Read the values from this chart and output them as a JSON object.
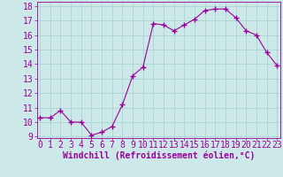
{
  "x": [
    0,
    1,
    2,
    3,
    4,
    5,
    6,
    7,
    8,
    9,
    10,
    11,
    12,
    13,
    14,
    15,
    16,
    17,
    18,
    19,
    20,
    21,
    22,
    23
  ],
  "y": [
    10.3,
    10.3,
    10.8,
    10.0,
    10.0,
    9.1,
    9.3,
    9.7,
    11.2,
    13.2,
    13.8,
    16.8,
    16.7,
    16.3,
    16.7,
    17.1,
    17.7,
    17.8,
    17.8,
    17.2,
    16.3,
    16.0,
    14.8,
    13.9
  ],
  "line_color": "#990099",
  "marker": "+",
  "marker_size": 4,
  "bg_color": "#cce8e8",
  "grid_color": "#aad4d4",
  "xlabel": "Windchill (Refroidissement éolien,°C)",
  "xlabel_color": "#990099",
  "tick_color": "#990099",
  "ylim": [
    9,
    18
  ],
  "yticks": [
    9,
    10,
    11,
    12,
    13,
    14,
    15,
    16,
    17,
    18
  ],
  "xlim": [
    0,
    23
  ],
  "xticks": [
    0,
    1,
    2,
    3,
    4,
    5,
    6,
    7,
    8,
    9,
    10,
    11,
    12,
    13,
    14,
    15,
    16,
    17,
    18,
    19,
    20,
    21,
    22,
    23
  ],
  "tick_fontsize": 7,
  "xlabel_fontsize": 7
}
